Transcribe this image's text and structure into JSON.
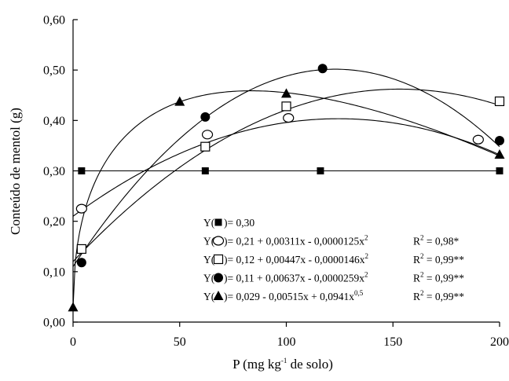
{
  "chart_data": {
    "type": "scatter",
    "xlabel": {
      "prefix": "P (mg kg",
      "sup": "-1",
      "suffix": " de solo)"
    },
    "ylabel": "Conteúdo de mentol (g)",
    "xlim": [
      0,
      200
    ],
    "ylim": [
      0,
      0.6
    ],
    "xticks": [
      0,
      50,
      100,
      150,
      200
    ],
    "xtick_labels": [
      "0",
      "50",
      "100",
      "150",
      "200"
    ],
    "yticks": [
      0,
      0.1,
      0.2,
      0.3,
      0.4,
      0.5,
      0.6
    ],
    "ytick_labels": [
      "0,00",
      "0,10",
      "0,20",
      "0,30",
      "0,40",
      "0,50",
      "0,60"
    ],
    "grid": false,
    "legend_position": "bottom-right",
    "series": [
      {
        "marker": "square-filled",
        "points": [
          [
            4,
            0.3
          ],
          [
            62,
            0.3
          ],
          [
            116,
            0.3
          ],
          [
            200,
            0.3
          ]
        ],
        "model": {
          "type": "constant",
          "a": 0.3
        },
        "equation": {
          "pre": "Y(",
          "post": ")= 0,30",
          "sup": "",
          "r2_pre": "",
          "r2_sup": "",
          "r2_post": ""
        }
      },
      {
        "marker": "circle-open",
        "points": [
          [
            4,
            0.225
          ],
          [
            63,
            0.372
          ],
          [
            101,
            0.405
          ],
          [
            190,
            0.362
          ]
        ],
        "model": {
          "type": "quadratic",
          "a": 0.21,
          "b": 0.00311,
          "c": -1.25e-05
        },
        "equation": {
          "pre": "Y(",
          "post": ")= 0,21 + 0,00311x - 0,0000125x",
          "sup": "2",
          "r2_pre": "R",
          "r2_sup": "2",
          "r2_post": " = 0,98*"
        }
      },
      {
        "marker": "square-open",
        "points": [
          [
            4,
            0.145
          ],
          [
            62,
            0.348
          ],
          [
            100,
            0.428
          ],
          [
            200,
            0.438
          ]
        ],
        "model": {
          "type": "quadratic",
          "a": 0.12,
          "b": 0.00447,
          "c": -1.46e-05
        },
        "equation": {
          "pre": "Y(",
          "post": ")= 0,12 + 0,00447x - 0,0000146x",
          "sup": "2",
          "r2_pre": "R",
          "r2_sup": "2",
          "r2_post": " = 0,99**"
        }
      },
      {
        "marker": "circle-filled",
        "points": [
          [
            4,
            0.118
          ],
          [
            62,
            0.407
          ],
          [
            117,
            0.503
          ],
          [
            200,
            0.36
          ]
        ],
        "model": {
          "type": "quadratic",
          "a": 0.11,
          "b": 0.00637,
          "c": -2.59e-05
        },
        "equation": {
          "pre": "Y(",
          "post": ")= 0,11 + 0,00637x - 0,0000259x",
          "sup": "2",
          "r2_pre": "R",
          "r2_sup": "2",
          "r2_post": " = 0,99**"
        }
      },
      {
        "marker": "triangle-filled",
        "points": [
          [
            0,
            0.029
          ],
          [
            50,
            0.437
          ],
          [
            100,
            0.453
          ],
          [
            200,
            0.332
          ]
        ],
        "model": {
          "type": "sqrt",
          "a": 0.029,
          "b": -0.00515,
          "c": 0.0941
        },
        "equation": {
          "pre": "Y(",
          "post": ")= 0,029 - 0,00515x + 0,0941x",
          "sup": "0,5",
          "r2_pre": "R",
          "r2_sup": "2",
          "r2_post": " = 0,99**"
        }
      }
    ]
  }
}
